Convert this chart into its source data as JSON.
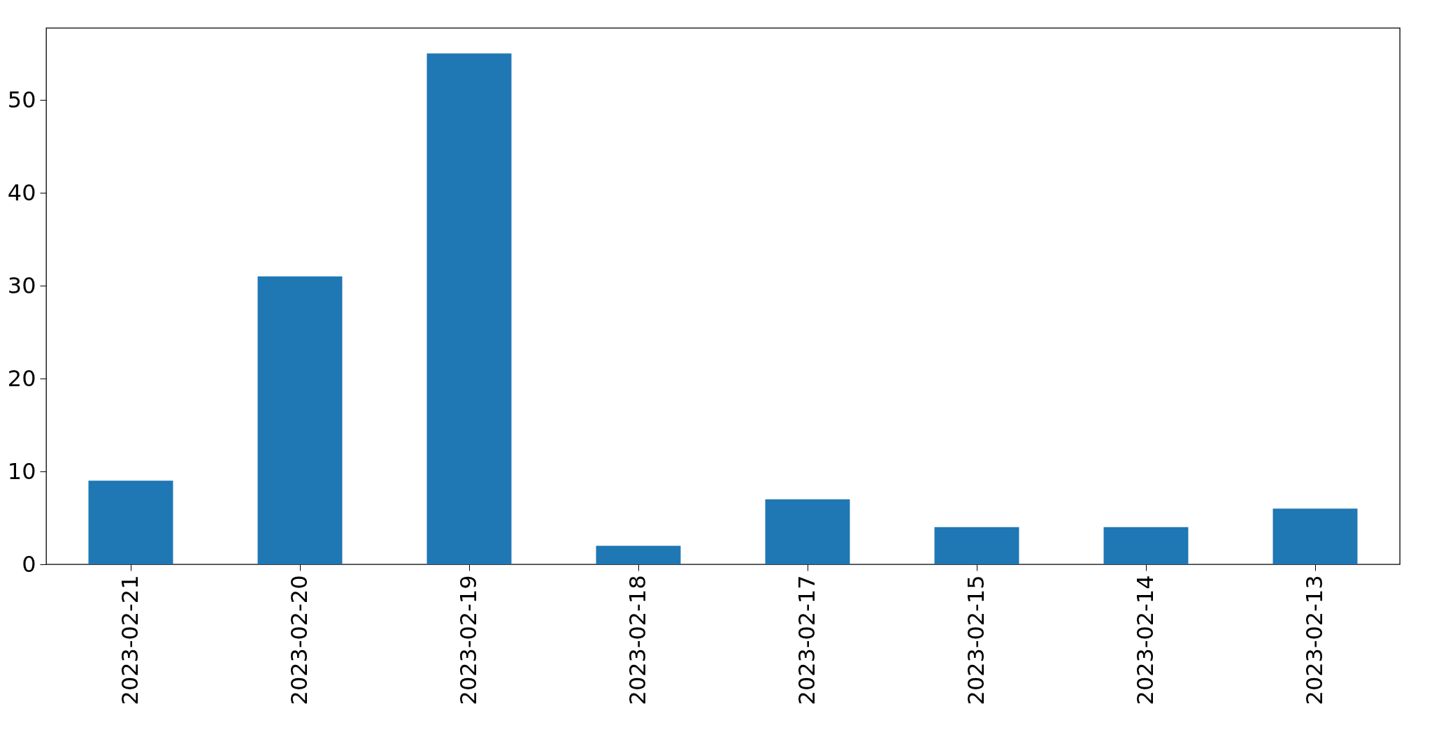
{
  "chart_data": {
    "type": "bar",
    "categories": [
      "2023-02-21",
      "2023-02-20",
      "2023-02-19",
      "2023-02-18",
      "2023-02-17",
      "2023-02-15",
      "2023-02-14",
      "2023-02-13"
    ],
    "values": [
      9,
      31,
      55,
      2,
      7,
      4,
      4,
      6
    ],
    "color": "#1f77b4",
    "ylim": [
      0,
      57.75
    ],
    "yticks": [
      0,
      10,
      20,
      30,
      40,
      50
    ],
    "grid": false
  }
}
